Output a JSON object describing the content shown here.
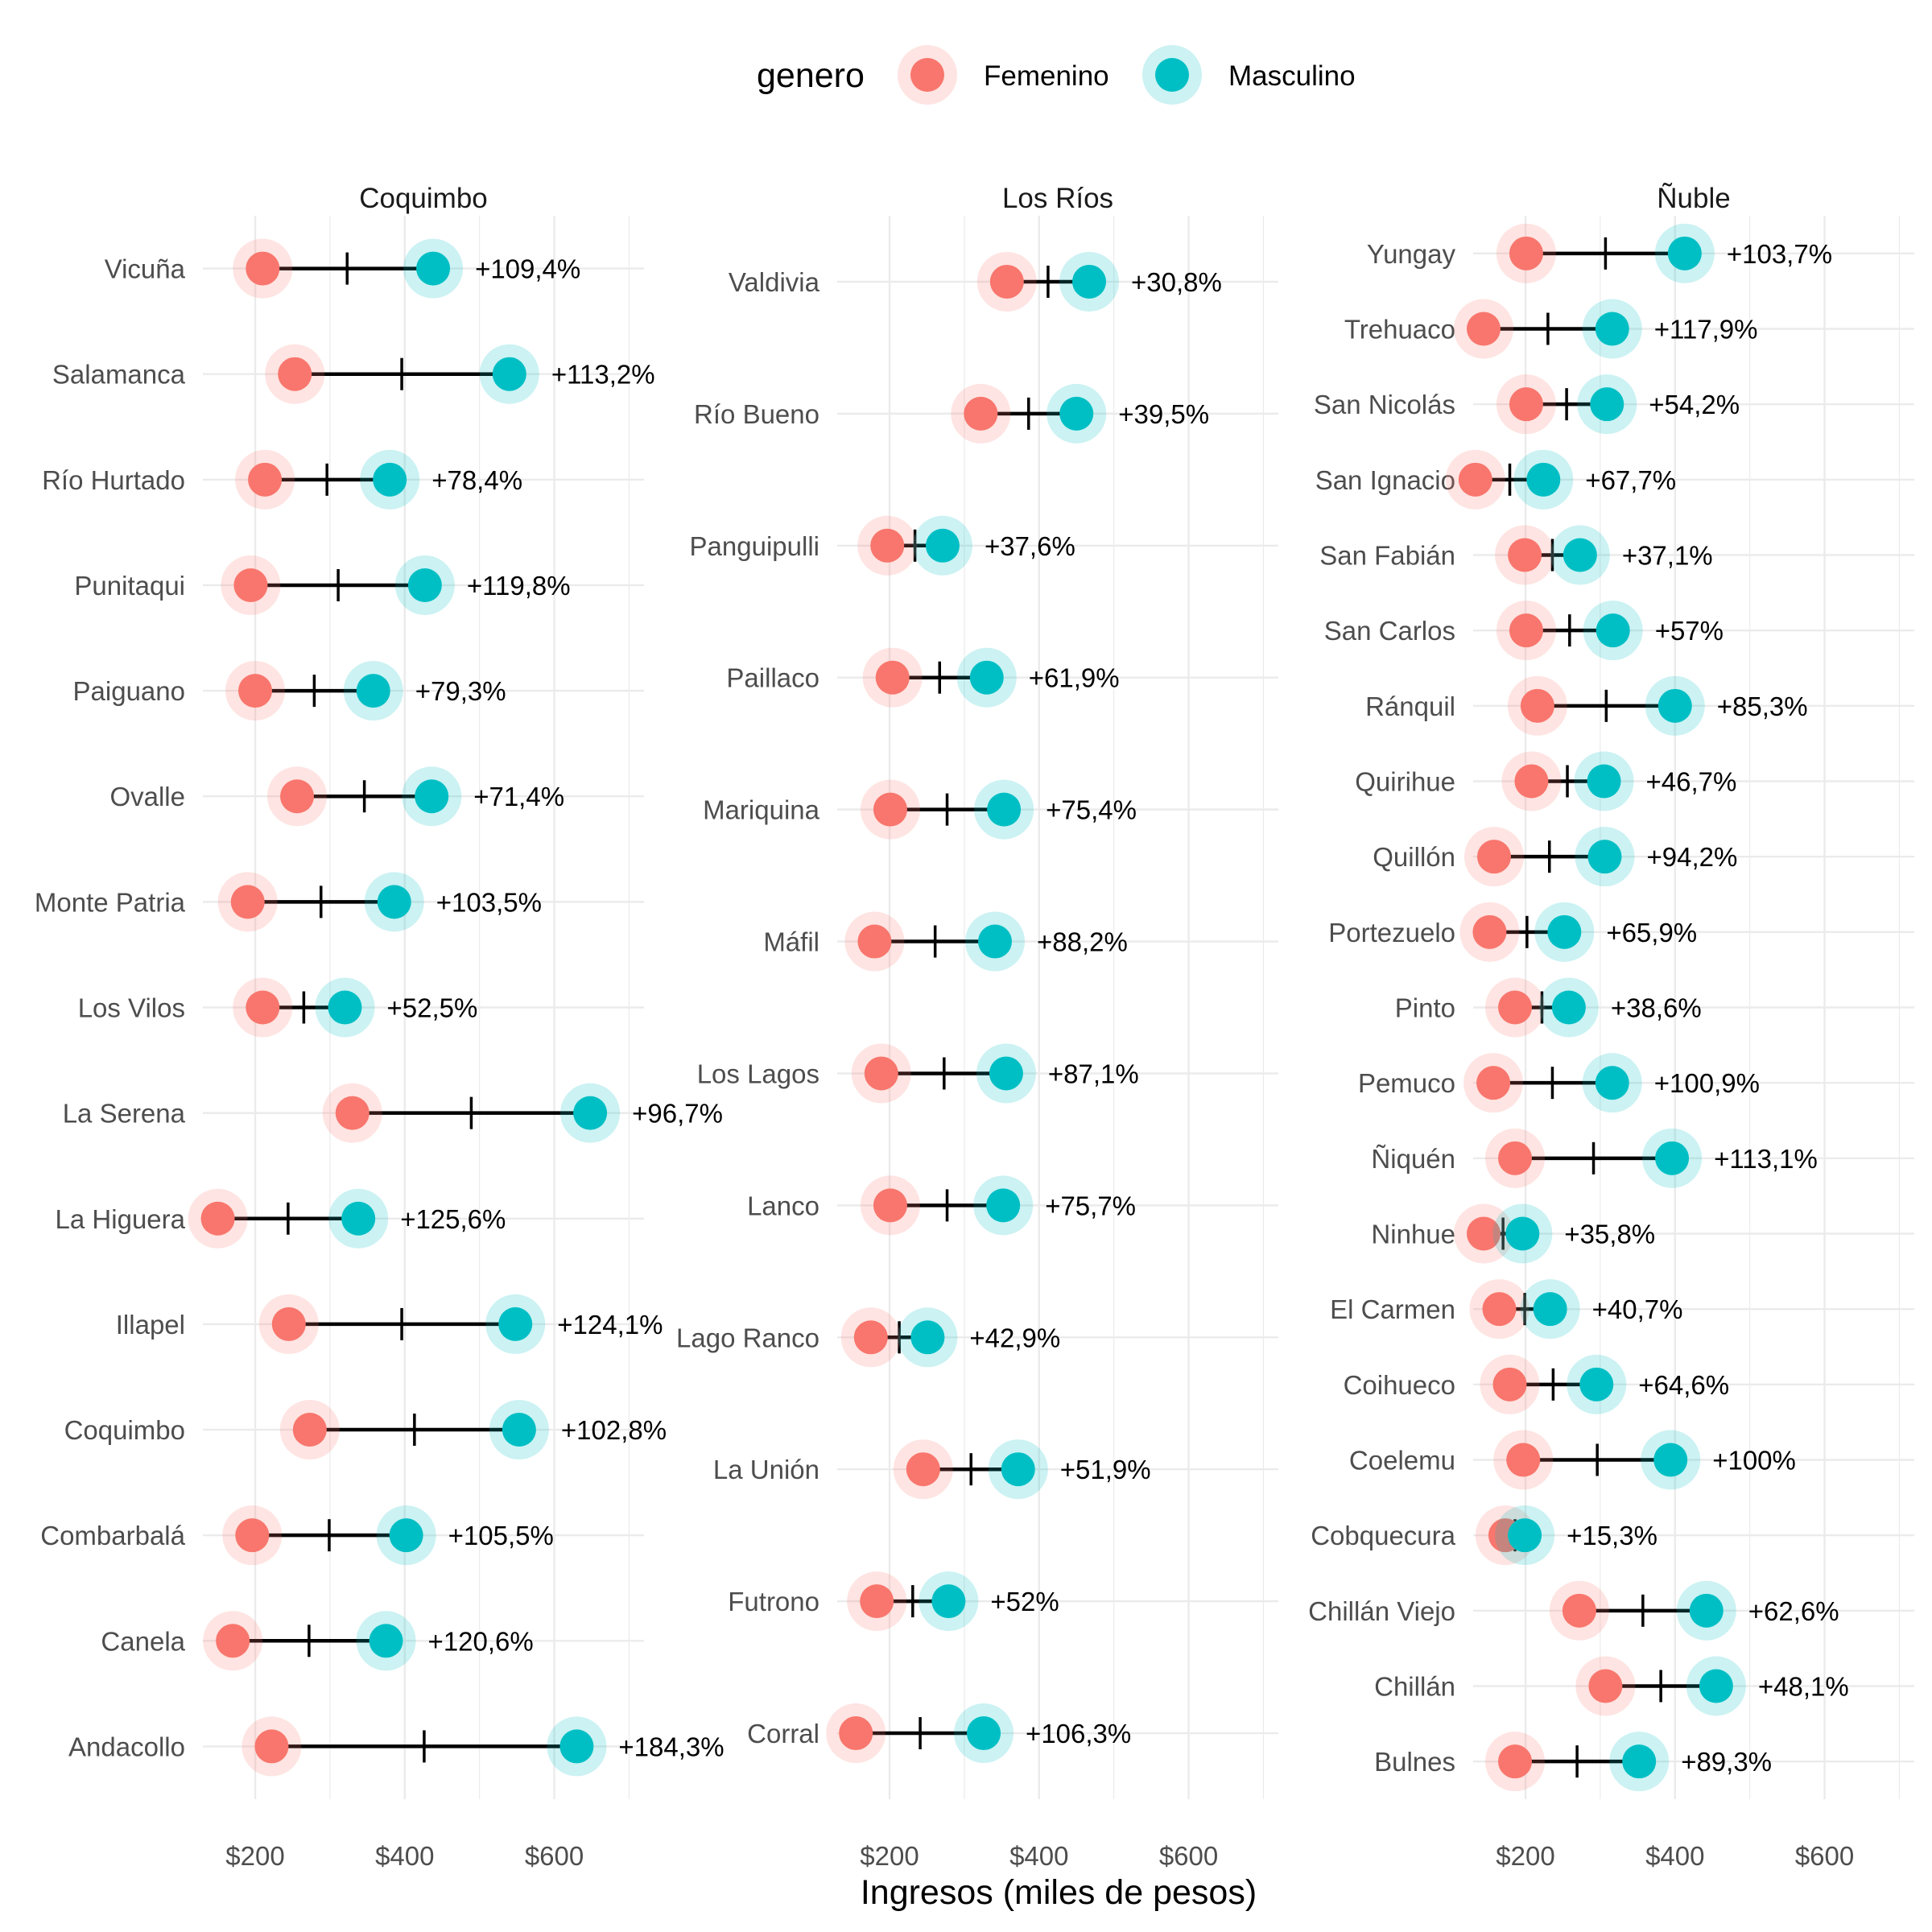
{
  "chart_data": {
    "type": "dumbbell",
    "xlabel": "Ingresos (miles de pesos)",
    "xlim": [
      130,
      720
    ],
    "x_ticks": [
      200,
      400,
      600
    ],
    "x_tick_labels": [
      "$200",
      "$400",
      "$600"
    ],
    "grid": true,
    "legend": {
      "title": "genero",
      "position": "top",
      "entries": [
        {
          "name": "Femenino",
          "color": "#F8766D"
        },
        {
          "name": "Masculino",
          "color": "#00BFC4"
        }
      ]
    },
    "colors": {
      "femenino": "#F8766D",
      "masculino": "#00BFC4",
      "segment": "#000000",
      "grid": "#ebebeb"
    },
    "panels": [
      {
        "title": "Coquimbo",
        "rows": [
          {
            "comuna": "Vicuña",
            "femenino": 210,
            "masculino": 438,
            "media": 323,
            "brecha": "+109,4%"
          },
          {
            "comuna": "Salamanca",
            "femenino": 253,
            "masculino": 540,
            "media": 396,
            "brecha": "+113,2%"
          },
          {
            "comuna": "Río Hurtado",
            "femenino": 213,
            "masculino": 380,
            "media": 296,
            "brecha": "+78,4%"
          },
          {
            "comuna": "Punitaqui",
            "femenino": 194,
            "masculino": 427,
            "media": 311,
            "brecha": "+119,8%"
          },
          {
            "comuna": "Paiguano",
            "femenino": 200,
            "masculino": 358,
            "media": 279,
            "brecha": "+79,3%"
          },
          {
            "comuna": "Ovalle",
            "femenino": 256,
            "masculino": 436,
            "media": 346,
            "brecha": "+71,4%"
          },
          {
            "comuna": "Monte Patria",
            "femenino": 190,
            "masculino": 386,
            "media": 288,
            "brecha": "+103,5%"
          },
          {
            "comuna": "Los Vilos",
            "femenino": 210,
            "masculino": 320,
            "media": 265,
            "brecha": "+52,5%"
          },
          {
            "comuna": "La Serena",
            "femenino": 330,
            "masculino": 648,
            "media": 489,
            "brecha": "+96,7%"
          },
          {
            "comuna": "La Higuera",
            "femenino": 150,
            "masculino": 338,
            "media": 244,
            "brecha": "+125,6%"
          },
          {
            "comuna": "Illapel",
            "femenino": 245,
            "masculino": 548,
            "media": 396,
            "brecha": "+124,1%"
          },
          {
            "comuna": "Coquimbo",
            "femenino": 273,
            "masculino": 553,
            "media": 413,
            "brecha": "+102,8%"
          },
          {
            "comuna": "Combarbalá",
            "femenino": 196,
            "masculino": 402,
            "media": 299,
            "brecha": "+105,5%"
          },
          {
            "comuna": "Canela",
            "femenino": 170,
            "masculino": 375,
            "media": 272,
            "brecha": "+120,6%"
          },
          {
            "comuna": "Andacollo",
            "femenino": 222,
            "masculino": 630,
            "media": 426,
            "brecha": "+184,3%"
          }
        ]
      },
      {
        "title": "Los Ríos",
        "rows": [
          {
            "comuna": "Valdivia",
            "femenino": 357,
            "masculino": 467,
            "media": 412,
            "brecha": "+30,8%"
          },
          {
            "comuna": "Río Bueno",
            "femenino": 322,
            "masculino": 450,
            "media": 386,
            "brecha": "+39,5%"
          },
          {
            "comuna": "Panguipulli",
            "femenino": 197,
            "masculino": 271,
            "media": 234,
            "brecha": "+37,6%"
          },
          {
            "comuna": "Paillaco",
            "femenino": 204,
            "masculino": 330,
            "media": 267,
            "brecha": "+61,9%"
          },
          {
            "comuna": "Mariquina",
            "femenino": 201,
            "masculino": 353,
            "media": 277,
            "brecha": "+75,4%"
          },
          {
            "comuna": "Máfil",
            "femenino": 180,
            "masculino": 341,
            "media": 261,
            "brecha": "+88,2%"
          },
          {
            "comuna": "Los Lagos",
            "femenino": 189,
            "masculino": 356,
            "media": 273,
            "brecha": "+87,1%"
          },
          {
            "comuna": "Lanco",
            "femenino": 201,
            "masculino": 352,
            "media": 277,
            "brecha": "+75,7%"
          },
          {
            "comuna": "Lago Ranco",
            "femenino": 175,
            "masculino": 251,
            "media": 213,
            "brecha": "+42,9%"
          },
          {
            "comuna": "La Unión",
            "femenino": 245,
            "masculino": 372,
            "media": 309,
            "brecha": "+51,9%"
          },
          {
            "comuna": "Futrono",
            "femenino": 183,
            "masculino": 279,
            "media": 231,
            "brecha": "+52%"
          },
          {
            "comuna": "Corral",
            "femenino": 155,
            "masculino": 326,
            "media": 241,
            "brecha": "+106,3%"
          }
        ]
      },
      {
        "title": "Ñuble",
        "rows": [
          {
            "comuna": "Yungay",
            "femenino": 201,
            "masculino": 413,
            "media": 307,
            "brecha": "+103,7%"
          },
          {
            "comuna": "Trehuaco",
            "femenino": 144,
            "masculino": 316,
            "media": 230,
            "brecha": "+117,9%"
          },
          {
            "comuna": "San Nicolás",
            "femenino": 201,
            "masculino": 309,
            "media": 255,
            "brecha": "+54,2%"
          },
          {
            "comuna": "San Ignacio",
            "femenino": 133,
            "masculino": 224,
            "media": 179,
            "brecha": "+67,7%"
          },
          {
            "comuna": "San Fabián",
            "femenino": 199,
            "masculino": 273,
            "media": 236,
            "brecha": "+37,1%"
          },
          {
            "comuna": "San Carlos",
            "femenino": 201,
            "masculino": 317,
            "media": 259,
            "brecha": "+57%"
          },
          {
            "comuna": "Ránquil",
            "femenino": 216,
            "masculino": 400,
            "media": 308,
            "brecha": "+85,3%"
          },
          {
            "comuna": "Quirihue",
            "femenino": 208,
            "masculino": 305,
            "media": 256,
            "brecha": "+46,7%"
          },
          {
            "comuna": "Quillón",
            "femenino": 158,
            "masculino": 306,
            "media": 232,
            "brecha": "+94,2%"
          },
          {
            "comuna": "Portezuelo",
            "femenino": 152,
            "masculino": 252,
            "media": 202,
            "brecha": "+65,9%"
          },
          {
            "comuna": "Pinto",
            "femenino": 186,
            "masculino": 258,
            "media": 222,
            "brecha": "+38,6%"
          },
          {
            "comuna": "Pemuco",
            "femenino": 157,
            "masculino": 316,
            "media": 236,
            "brecha": "+100,9%"
          },
          {
            "comuna": "Ñiquén",
            "femenino": 186,
            "masculino": 396,
            "media": 291,
            "brecha": "+113,1%"
          },
          {
            "comuna": "Ninhue",
            "femenino": 144,
            "masculino": 196,
            "media": 170,
            "brecha": "+35,8%"
          },
          {
            "comuna": "El Carmen",
            "femenino": 165,
            "masculino": 233,
            "media": 199,
            "brecha": "+40,7%"
          },
          {
            "comuna": "Coihueco",
            "femenino": 179,
            "masculino": 295,
            "media": 237,
            "brecha": "+64,6%"
          },
          {
            "comuna": "Coelemu",
            "femenino": 197,
            "masculino": 394,
            "media": 296,
            "brecha": "+100%"
          },
          {
            "comuna": "Cobquecura",
            "femenino": 173,
            "masculino": 199,
            "media": 186,
            "brecha": "+15,3%"
          },
          {
            "comuna": "Chillán Viejo",
            "femenino": 272,
            "masculino": 442,
            "media": 357,
            "brecha": "+62,6%"
          },
          {
            "comuna": "Chillán",
            "femenino": 307,
            "masculino": 455,
            "media": 381,
            "brecha": "+48,1%"
          },
          {
            "comuna": "Bulnes",
            "femenino": 186,
            "masculino": 352,
            "media": 269,
            "brecha": "+89,3%"
          }
        ]
      }
    ]
  }
}
